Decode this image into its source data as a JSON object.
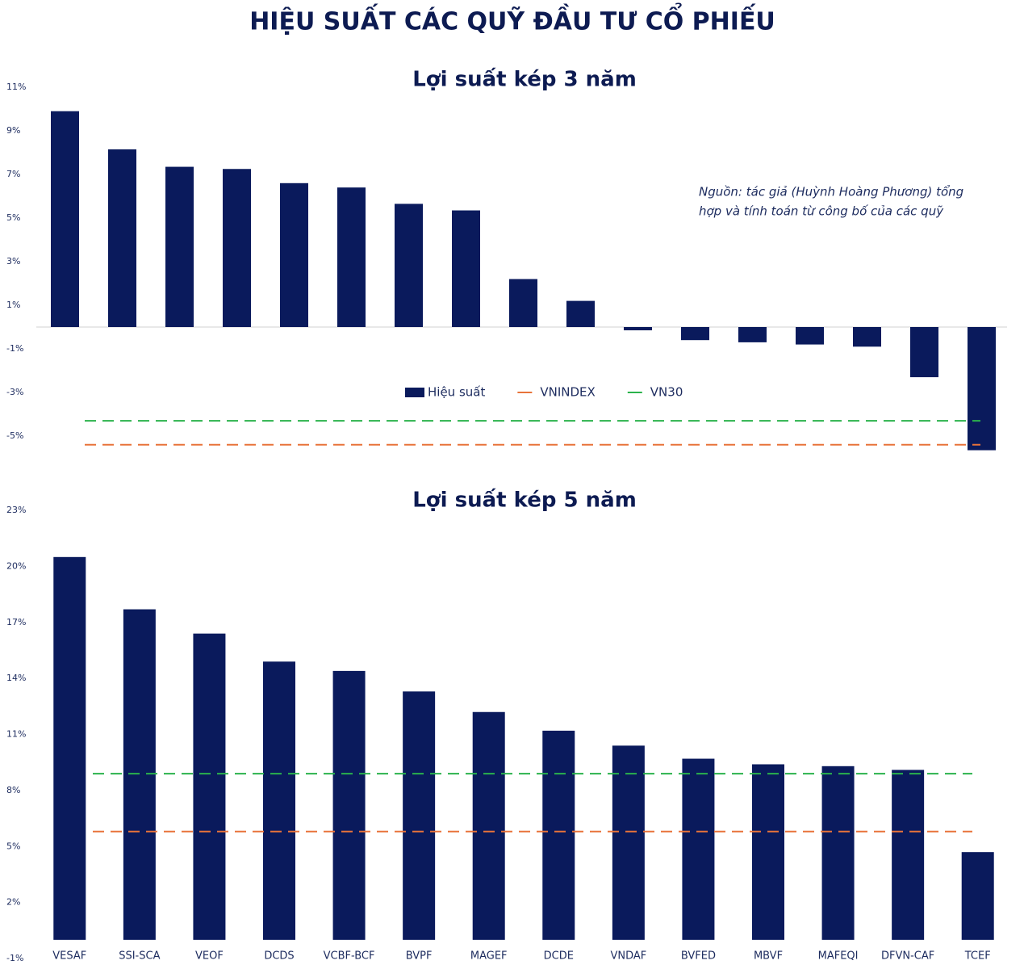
{
  "title": "HIỆU SUẤT CÁC QUỸ ĐẦU TƯ CỔ PHIẾU",
  "chart_data": [
    {
      "type": "bar",
      "title": "Lợi suất kép 3 năm",
      "note": [
        "Nguồn: tác giả (Huỳnh Hoàng Phương) tổng",
        "hợp và tính toán từ công bố của các quỹ"
      ],
      "categories": [
        null,
        null,
        null,
        null,
        null,
        null,
        null,
        null,
        null,
        null,
        null,
        null,
        null,
        null,
        null,
        null,
        null
      ],
      "series": [
        {
          "name": "Hiệu suất",
          "color": "#0a1a5c",
          "values": [
            9.9,
            8.15,
            7.35,
            7.25,
            6.6,
            6.4,
            5.65,
            5.35,
            2.2,
            1.2,
            -0.15,
            -0.6,
            -0.7,
            -0.8,
            -0.9,
            -2.3,
            -5.65
          ]
        }
      ],
      "hlines": [
        {
          "name": "VNINDEX",
          "color": "#e8733a",
          "value": -5.4
        },
        {
          "name": "VN30",
          "color": "#2bb24c",
          "value": -4.3
        }
      ],
      "legend": true,
      "ylim": [
        -6,
        11
      ],
      "yticks": [
        {
          "value": 11,
          "label": "11%"
        },
        {
          "value": 9,
          "label": "9%"
        },
        {
          "value": 7,
          "label": "7%"
        },
        {
          "value": 5,
          "label": "5%"
        },
        {
          "value": 3,
          "label": "3%"
        },
        {
          "value": 1,
          "label": "1%"
        },
        {
          "value": -1,
          "label": "-1%"
        },
        {
          "value": -3,
          "label": "-3%"
        },
        {
          "value": -5,
          "label": "-5%"
        }
      ]
    },
    {
      "type": "bar",
      "title": "Lợi suất kép 5 năm",
      "categories": [
        "VESAF",
        "SSI-SCA",
        "VEOF",
        "DCDS",
        "VCBF-BCF",
        "BVPF",
        "MAGEF",
        "DCDE",
        "VNDAF",
        "BVFED",
        "MBVF",
        "MAFEQI",
        "DFVN-CAF",
        "TCEF"
      ],
      "series": [
        {
          "color": "#0a1a5c",
          "values": [
            20.5,
            17.7,
            16.4,
            14.9,
            14.4,
            13.3,
            12.2,
            11.2,
            10.4,
            9.7,
            9.4,
            9.3,
            9.1,
            4.7
          ]
        }
      ],
      "hlines": [
        {
          "color": "#e8733a",
          "value": 5.8
        },
        {
          "color": "#2bb24c",
          "value": 8.9
        }
      ],
      "legend": false,
      "ylim": [
        -1,
        23
      ],
      "yticks": [
        {
          "value": 23,
          "label": "23%"
        },
        {
          "value": 20,
          "label": "20%"
        },
        {
          "value": 17,
          "label": "17%"
        },
        {
          "value": 14,
          "label": "14%"
        },
        {
          "value": 11,
          "label": "11%"
        },
        {
          "value": 8,
          "label": "8%"
        },
        {
          "value": 5,
          "label": "5%"
        },
        {
          "value": 2,
          "label": "2%"
        },
        {
          "value": -1,
          "label": "-1%"
        }
      ]
    }
  ]
}
